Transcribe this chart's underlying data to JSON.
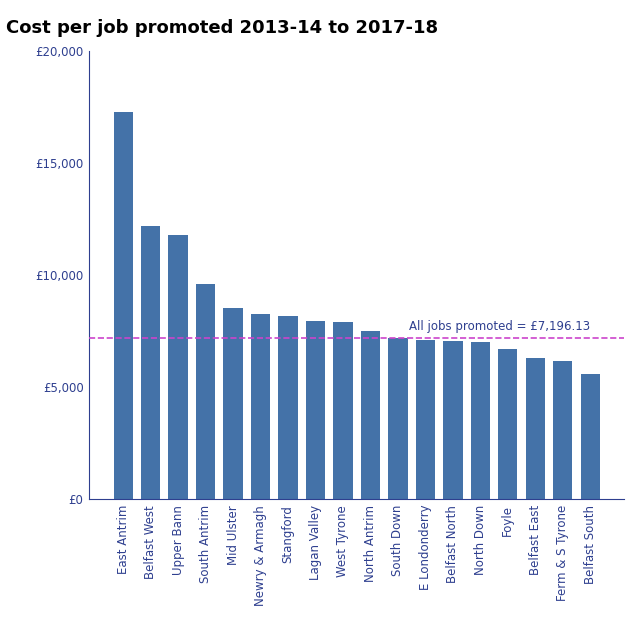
{
  "title": "Cost per job promoted 2013-14 to 2017-18",
  "categories": [
    "East Antrim",
    "Belfast West",
    "Upper Bann",
    "South Antrim",
    "Mid Ulster",
    "Newry & Armagh",
    "Stangford",
    "Lagan Valley",
    "West Tyrone",
    "North Antrim",
    "South Down",
    "E Londonderry",
    "Belfast North",
    "North Down",
    "Foyle",
    "Belfast East",
    "Ferm & S Tyrone",
    "Belfast South"
  ],
  "values": [
    17300,
    12200,
    11800,
    9600,
    8550,
    8250,
    8200,
    7950,
    7900,
    7500,
    7200,
    7100,
    7050,
    7000,
    6700,
    6300,
    6150,
    5600
  ],
  "bar_color": "#4472a8",
  "reference_line": 7196.13,
  "reference_label": "All jobs promoted = £7,196.13",
  "reference_color": "#cc44cc",
  "yticks": [
    0,
    5000,
    10000,
    15000,
    20000
  ],
  "ylim": [
    0,
    20000
  ],
  "title_fontsize": 13,
  "title_color": "#000000",
  "axis_label_color": "#2e3f8f",
  "tick_label_color": "#2e3f8f",
  "ref_label_color": "#2e3f8f",
  "background_color": "#ffffff",
  "ref_label_fontsize": 8.5,
  "tick_fontsize": 8.5,
  "bar_width": 0.7
}
